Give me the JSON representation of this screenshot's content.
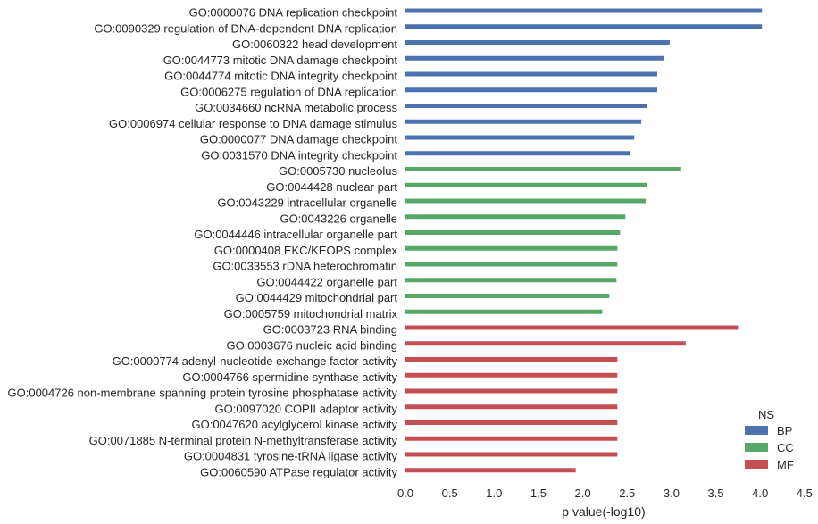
{
  "chart_data": {
    "type": "bar",
    "orientation": "horizontal",
    "categories": [
      "GO:0000076 DNA replication checkpoint",
      "GO:0090329 regulation of DNA-dependent DNA replication",
      "GO:0060322 head development",
      "GO:0044773 mitotic DNA damage checkpoint",
      "GO:0044774 mitotic DNA integrity checkpoint",
      "GO:0006275 regulation of DNA replication",
      "GO:0034660 ncRNA metabolic process",
      "GO:0006974 cellular response to DNA damage stimulus",
      "GO:0000077 DNA damage checkpoint",
      "GO:0031570 DNA integrity checkpoint",
      "GO:0005730 nucleolus",
      "GO:0044428 nuclear part",
      "GO:0043229 intracellular organelle",
      "GO:0043226 organelle",
      "GO:0044446 intracellular organelle part",
      "GO:0000408 EKC/KEOPS complex",
      "GO:0033553 rDNA heterochromatin",
      "GO:0044422 organelle part",
      "GO:0044429 mitochondrial part",
      "GO:0005759 mitochondrial matrix",
      "GO:0003723 RNA binding",
      "GO:0003676 nucleic acid binding",
      "GO:0000774 adenyl-nucleotide exchange factor activity",
      "GO:0004766 spermidine synthase activity",
      "GO:0004726 non-membrane spanning protein tyrosine phosphatase activity",
      "GO:0097020 COPII adaptor activity",
      "GO:0047620 acylglycerol kinase activity",
      "GO:0071885 N-terminal protein N-methyltransferase activity",
      "GO:0004831 tyrosine-tRNA ligase activity",
      "GO:0060590 ATPase regulator activity"
    ],
    "series": [
      {
        "name": "BP",
        "color": "#4c72b0",
        "values": [
          4.02,
          4.02,
          2.98,
          2.91,
          2.84,
          2.84,
          2.72,
          2.66,
          2.58,
          2.53,
          null,
          null,
          null,
          null,
          null,
          null,
          null,
          null,
          null,
          null,
          null,
          null,
          null,
          null,
          null,
          null,
          null,
          null,
          null,
          null
        ]
      },
      {
        "name": "CC",
        "color": "#55a868",
        "values": [
          null,
          null,
          null,
          null,
          null,
          null,
          null,
          null,
          null,
          null,
          3.11,
          2.72,
          2.71,
          2.48,
          2.42,
          2.39,
          2.39,
          2.38,
          2.3,
          2.22,
          null,
          null,
          null,
          null,
          null,
          null,
          null,
          null,
          null,
          null
        ]
      },
      {
        "name": "MF",
        "color": "#c44e52",
        "values": [
          null,
          null,
          null,
          null,
          null,
          null,
          null,
          null,
          null,
          null,
          null,
          null,
          null,
          null,
          null,
          null,
          null,
          null,
          null,
          null,
          3.75,
          3.16,
          2.39,
          2.39,
          2.39,
          2.39,
          2.39,
          2.39,
          2.39,
          1.92
        ]
      }
    ],
    "xlabel": "p value(-log10)",
    "ylabel": "",
    "xlim": [
      0,
      4.5
    ],
    "xticks": [
      "0.0",
      "0.5",
      "1.0",
      "1.5",
      "2.0",
      "2.5",
      "3.0",
      "3.5",
      "4.0",
      "4.5"
    ],
    "grid": false,
    "legend": {
      "title": "NS",
      "placement": "bottom-right",
      "entries": [
        "BP",
        "CC",
        "MF"
      ]
    }
  }
}
